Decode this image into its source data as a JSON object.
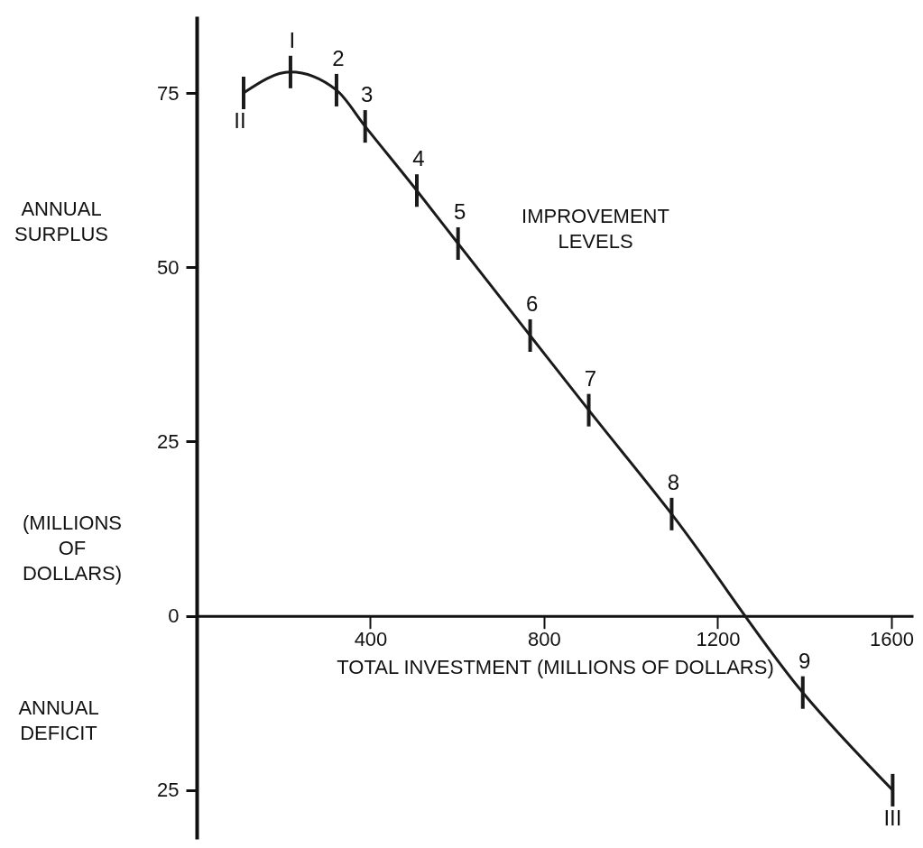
{
  "chart_data": {
    "type": "line",
    "xlabel": "TOTAL INVESTMENT (MILLIONS OF DOLLARS)",
    "ylabel": "ANNUAL SURPLUS",
    "x": [
      108,
      216,
      322,
      388,
      507,
      602,
      768,
      903,
      1094,
      1396,
      1603
    ],
    "series": [
      {
        "color": "#1a1a1a",
        "values": [
          75,
          78,
          75.4,
          70.2,
          61,
          53.4,
          40.2,
          29.5,
          14.6,
          -11,
          -25
        ]
      }
    ],
    "xlim": [
      0,
      1650
    ],
    "ylim": [
      -32,
      86
    ],
    "xticks": [
      400,
      800,
      1200,
      1600
    ],
    "yticks": [
      {
        "value": -25,
        "label": "25"
      },
      0,
      25,
      50,
      75
    ],
    "grid": false,
    "annotations": [
      {
        "text": "II",
        "x": 108,
        "y": 75
      },
      {
        "text": "I",
        "x": 216,
        "y": 78
      },
      {
        "text": "2",
        "x": 322,
        "y": 75.4
      },
      {
        "text": "3",
        "x": 388,
        "y": 70.2
      },
      {
        "text": "4",
        "x": 507,
        "y": 61
      },
      {
        "text": "5",
        "x": 602,
        "y": 53.4
      },
      {
        "text": "6",
        "x": 768,
        "y": 40.2
      },
      {
        "text": "7",
        "x": 903,
        "y": 29.5
      },
      {
        "text": "8",
        "x": 1094,
        "y": 14.6
      },
      {
        "text": "9",
        "x": 1396,
        "y": -11
      },
      {
        "text": "III",
        "x": 1603,
        "y": -25
      },
      "IMPROVEMENT LEVELS",
      "(MILLIONS OF DOLLARS)",
      "ANNUAL DEFICIT"
    ]
  }
}
